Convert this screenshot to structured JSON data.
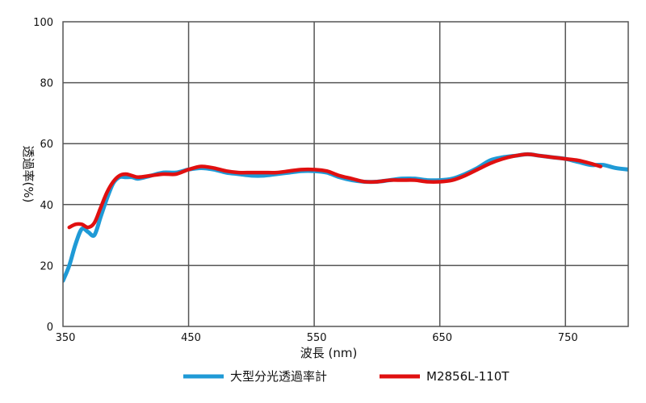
{
  "chart_data": {
    "type": "line",
    "xlabel": "波長 (nm)",
    "ylabel": "透過率(%)",
    "xlim": [
      350,
      800
    ],
    "ylim": [
      0,
      100
    ],
    "xticks": [
      350,
      450,
      550,
      650,
      750
    ],
    "yticks": [
      0,
      20,
      40,
      60,
      80,
      100
    ],
    "grid": true,
    "legend_position": "bottom-center",
    "series": [
      {
        "name": "大型分光透過率計",
        "color": "#1f9ad6",
        "x": [
          350,
          355,
          360,
          365,
          370,
          375,
          380,
          385,
          390,
          395,
          400,
          405,
          410,
          420,
          430,
          440,
          450,
          460,
          470,
          480,
          490,
          500,
          510,
          520,
          530,
          540,
          550,
          560,
          570,
          580,
          590,
          600,
          610,
          620,
          630,
          640,
          650,
          660,
          670,
          680,
          690,
          700,
          710,
          720,
          730,
          740,
          750,
          760,
          770,
          780,
          790,
          800
        ],
        "y": [
          15,
          20,
          27,
          32,
          31,
          30,
          36,
          42,
          47,
          49,
          49,
          49,
          48.5,
          49.5,
          50.5,
          50.5,
          51.5,
          52,
          51.5,
          50.5,
          50,
          49.5,
          49.5,
          50,
          50.5,
          51,
          51,
          50.5,
          49,
          48,
          47.5,
          47.5,
          48,
          48.5,
          48.5,
          48,
          48,
          48.5,
          50,
          52,
          54.5,
          55.5,
          56,
          56.5,
          56,
          55.5,
          55,
          54,
          53,
          53,
          52,
          51.5
        ]
      },
      {
        "name": "M2856L-110T",
        "color": "#e01010",
        "x": [
          355,
          360,
          365,
          370,
          375,
          380,
          385,
          390,
          395,
          400,
          405,
          410,
          420,
          430,
          440,
          450,
          460,
          470,
          480,
          490,
          500,
          510,
          520,
          530,
          540,
          550,
          560,
          570,
          580,
          590,
          600,
          610,
          620,
          630,
          640,
          650,
          660,
          670,
          680,
          690,
          700,
          710,
          720,
          730,
          740,
          750,
          760,
          770,
          778
        ],
        "y": [
          32.5,
          33.5,
          33.5,
          32.5,
          34,
          39,
          44,
          47.5,
          49.5,
          50,
          49.5,
          49,
          49.5,
          50,
          50,
          51.5,
          52.5,
          52,
          51,
          50.5,
          50.5,
          50.5,
          50.5,
          51,
          51.5,
          51.5,
          51,
          49.5,
          48.5,
          47.5,
          47.5,
          48,
          48,
          48,
          47.5,
          47.5,
          48,
          49.5,
          51.5,
          53.5,
          55,
          56,
          56.5,
          56,
          55.5,
          55,
          54.5,
          53.5,
          52.5
        ]
      }
    ]
  }
}
